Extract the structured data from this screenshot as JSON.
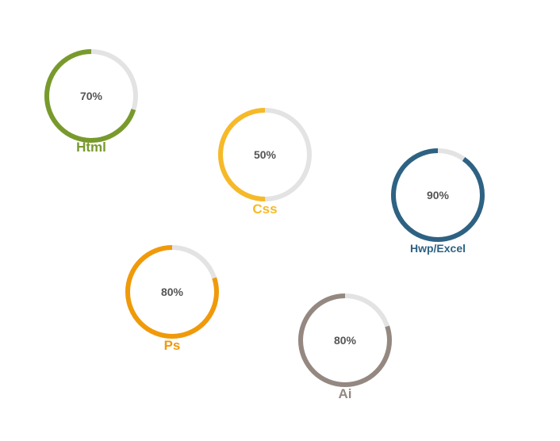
{
  "skills": [
    {
      "name": "Html",
      "percent_label": "70%",
      "value": 0.7,
      "color": "#789a2c",
      "track_color": "#e3e3e3"
    },
    {
      "name": "Css",
      "percent_label": "50%",
      "value": 0.5,
      "color": "#f6b928",
      "track_color": "#e3e3e3"
    },
    {
      "name": "Hwp/Excel",
      "percent_label": "90%",
      "value": 0.9,
      "color": "#2e6283",
      "track_color": "#e3e3e3"
    },
    {
      "name": "Ps",
      "percent_label": "80%",
      "value": 0.8,
      "color": "#f09a0a",
      "track_color": "#e3e3e3"
    },
    {
      "name": "Ai",
      "percent_label": "80%",
      "value": 0.8,
      "color": "#948881",
      "track_color": "#e3e3e3"
    }
  ]
}
